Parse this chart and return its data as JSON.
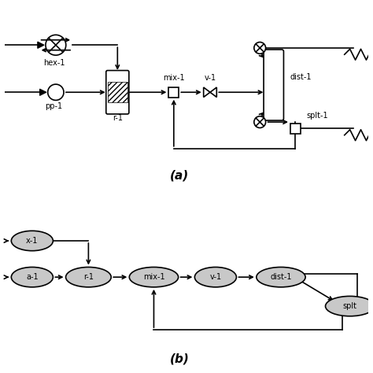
{
  "fig_width": 4.74,
  "fig_height": 4.74,
  "dpi": 100,
  "bg_color": "#ffffff",
  "line_color": "#000000",
  "label_a": "(a)",
  "label_b": "(b)",
  "top_labels": {
    "hex1": "hex-1",
    "pp1": "pp-1",
    "r1": "r-1",
    "mix1": "mix-1",
    "v1": "v-1",
    "dist1": "dist-1",
    "splt1": "splt-1"
  },
  "bottom_labels": {
    "hex1": "x-1",
    "pp1": "a-1",
    "r1": "r-1",
    "mix1": "mix-1",
    "v1": "v-1",
    "dist1": "dist-1",
    "splt1": "splt"
  }
}
